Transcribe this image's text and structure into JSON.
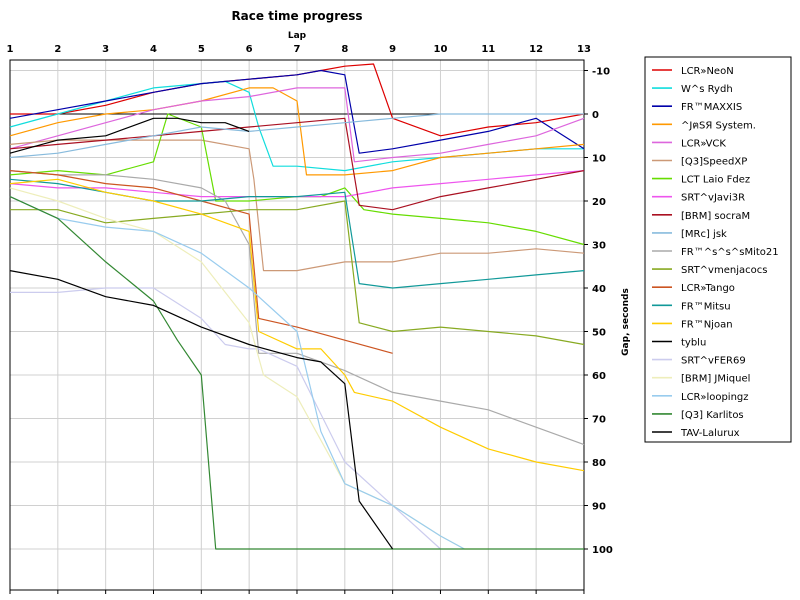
{
  "chart_data": {
    "type": "line",
    "title": "Race time progress",
    "xlabel": "Lap",
    "ylabel": "Gap, seconds",
    "xlim": [
      1,
      13
    ],
    "ylim": [
      -12,
      110
    ],
    "y_inverted": true,
    "grid": true,
    "legend_position": "right",
    "x_ticks": [
      "1",
      "2",
      "3",
      "4",
      "5",
      "6",
      "7",
      "8",
      "9",
      "10",
      "11",
      "12",
      "13"
    ],
    "y_ticks": [
      "-10",
      "0",
      "10",
      "20",
      "30",
      "40",
      "50",
      "60",
      "70",
      "80",
      "90",
      "100"
    ],
    "series": [
      {
        "name": "LCR»NeoN",
        "color": "#dd0000",
        "x": [
          1,
          2,
          3,
          4,
          5,
          6,
          7,
          7.5,
          8,
          8.6,
          9,
          10,
          11,
          12,
          13
        ],
        "y": [
          0,
          0,
          -2,
          -5,
          -7,
          -8,
          -9,
          -10,
          -11,
          -11.5,
          1,
          5,
          3,
          2,
          0
        ]
      },
      {
        "name": "W^s Rydh",
        "color": "#11dddd",
        "x": [
          1,
          2,
          3,
          4,
          5,
          5.5,
          6,
          6.2,
          6.5,
          7,
          8,
          9,
          10,
          11,
          12,
          13
        ],
        "y": [
          3,
          0,
          -3,
          -6,
          -7,
          -7.5,
          -5,
          3,
          12,
          12,
          13,
          11,
          10,
          9,
          8,
          8
        ]
      },
      {
        "name": "FR™MAXXIS",
        "color": "#0000aa",
        "x": [
          1,
          2,
          3,
          4,
          5,
          6,
          7,
          7.5,
          8,
          8.3,
          9,
          10,
          11,
          12,
          13
        ],
        "y": [
          1,
          -1,
          -3,
          -5,
          -7,
          -8,
          -9,
          -10,
          -9,
          9,
          8,
          6,
          4,
          1,
          8
        ]
      },
      {
        "name": "^JฅSЯ System.",
        "color": "#ff9900",
        "x": [
          1,
          2,
          3,
          4,
          5,
          6,
          6.5,
          7,
          7.2,
          8,
          9,
          10,
          11,
          12,
          13
        ],
        "y": [
          5,
          2,
          0,
          -1,
          -3,
          -6,
          -6,
          -3,
          14,
          14,
          13,
          10,
          9,
          8,
          7
        ]
      },
      {
        "name": "LCR»VCK",
        "color": "#dd66dd",
        "x": [
          1,
          2,
          3,
          4,
          5,
          6,
          7,
          8,
          8.2,
          9,
          10,
          11,
          12,
          13
        ],
        "y": [
          8,
          5,
          2,
          -1,
          -3,
          -4,
          -6,
          -6,
          11,
          10,
          9,
          7,
          5,
          1
        ]
      },
      {
        "name": "[Q3]SpeedXP",
        "color": "#cc9977",
        "x": [
          1,
          2,
          3,
          4,
          5,
          6,
          6.1,
          6.3,
          7,
          8,
          9,
          10,
          11,
          12,
          13
        ],
        "y": [
          7,
          6,
          6,
          6,
          6,
          8,
          15,
          36,
          36,
          34,
          34,
          32,
          32,
          31,
          32
        ]
      },
      {
        "name": "LCT Laio Fdez",
        "color": "#66dd00",
        "x": [
          1,
          2,
          3,
          4,
          4.3,
          5,
          5.3,
          6,
          7,
          7.5,
          8,
          8.4,
          9,
          10,
          11,
          12,
          13
        ],
        "y": [
          14,
          13,
          14,
          11,
          0,
          3,
          20,
          20,
          19,
          19,
          17,
          22,
          23,
          24,
          25,
          27,
          30
        ]
      },
      {
        "name": "SRT^vJavi3R",
        "color": "#ee55ee",
        "x": [
          1,
          2,
          3,
          4,
          5,
          6,
          7,
          8,
          9,
          10,
          11,
          12,
          13
        ],
        "y": [
          16,
          17,
          17,
          18,
          19,
          19,
          19,
          19,
          17,
          16,
          15,
          14,
          13
        ]
      },
      {
        "name": "[BRM] socraM",
        "color": "#aa1122",
        "x": [
          1,
          2,
          3,
          4,
          5,
          6,
          7,
          8,
          8.3,
          9,
          10,
          11,
          12,
          13
        ],
        "y": [
          8,
          7,
          6,
          5,
          4,
          3,
          2,
          1,
          21,
          22,
          19,
          17,
          15,
          13
        ]
      },
      {
        "name": "[MRc] jsk",
        "color": "#88bbdd",
        "x": [
          1,
          2,
          3,
          4,
          5,
          6,
          7,
          8,
          9,
          10,
          11,
          12,
          13
        ],
        "y": [
          10,
          9,
          7,
          5,
          3,
          4,
          3,
          2,
          1,
          0,
          0,
          0,
          0
        ]
      },
      {
        "name": "FR™^s^s^sMito21",
        "color": "#aaaaaa",
        "x": [
          1,
          2,
          3,
          4,
          5,
          5.5,
          6,
          6.2,
          7,
          7.5,
          8,
          9,
          10,
          11,
          12,
          13
        ],
        "y": [
          13,
          14,
          14,
          15,
          17,
          20,
          30,
          55,
          55,
          57,
          59,
          64,
          66,
          68,
          72,
          76
        ]
      },
      {
        "name": "SRT^vmenjacocs",
        "color": "#88aa22",
        "x": [
          1,
          2,
          3,
          4,
          5,
          6,
          7,
          8,
          8.3,
          9,
          10,
          11,
          12,
          13
        ],
        "y": [
          22,
          22,
          25,
          24,
          23,
          22,
          22,
          20,
          48,
          50,
          49,
          50,
          51,
          53
        ]
      },
      {
        "name": "LCR»Tango",
        "color": "#cc5522",
        "x": [
          1,
          2,
          3,
          4,
          5,
          6,
          6.2,
          7,
          8,
          9
        ],
        "y": [
          13,
          14,
          16,
          17,
          20,
          23,
          47,
          49,
          52,
          55
        ]
      },
      {
        "name": "FR™Mitsu",
        "color": "#119999",
        "x": [
          1,
          2,
          3,
          4,
          5,
          6,
          7,
          8,
          8.3,
          9,
          10,
          11,
          12,
          13
        ],
        "y": [
          15,
          16,
          18,
          20,
          20,
          19,
          19,
          18,
          39,
          40,
          39,
          38,
          37,
          36
        ]
      },
      {
        "name": "FR™Njoan",
        "color": "#ffcc00",
        "x": [
          1,
          2,
          3,
          4,
          5,
          6,
          6.2,
          7,
          7.5,
          8,
          8.2,
          9,
          10,
          11,
          12,
          13
        ],
        "y": [
          16,
          15,
          18,
          20,
          23,
          27,
          50,
          54,
          54,
          60,
          64,
          66,
          72,
          77,
          80,
          82
        ]
      },
      {
        "name": "tyblu",
        "color": "#000000",
        "x": [
          1,
          2,
          3,
          4,
          4.5,
          5,
          5.5,
          6
        ],
        "y": [
          9,
          6,
          5,
          1,
          1,
          2,
          2,
          4
        ]
      },
      {
        "name": "SRT^vFER69",
        "color": "#ccccee",
        "x": [
          1,
          2,
          3,
          4,
          5,
          5.5,
          6,
          6.2,
          7,
          8,
          9,
          10
        ],
        "y": [
          41,
          41,
          40,
          40,
          47,
          53,
          54,
          54,
          58,
          80,
          90,
          100
        ]
      },
      {
        "name": "[BRM] JMiquel",
        "color": "#eeeebb",
        "x": [
          1,
          2,
          3,
          4,
          5,
          6,
          6.3,
          7,
          8,
          9,
          10,
          10.5,
          11
        ],
        "y": [
          17,
          20,
          24,
          27,
          34,
          48,
          60,
          65,
          85,
          90,
          97,
          100,
          100
        ]
      },
      {
        "name": "LCR»loopingz",
        "color": "#99ccee",
        "x": [
          1,
          2,
          3,
          4,
          5,
          6,
          7,
          7.5,
          8,
          9,
          10,
          10.5
        ],
        "y": [
          19,
          24,
          26,
          27,
          32,
          40,
          50,
          73,
          85,
          90,
          97,
          100
        ]
      },
      {
        "name": "[Q3] Karlitos",
        "color": "#338833",
        "x": [
          1,
          2,
          3,
          4,
          4.5,
          5,
          5.3,
          6,
          7,
          8,
          9,
          10,
          11,
          12,
          13
        ],
        "y": [
          19,
          24,
          34,
          43,
          52,
          60,
          100,
          100,
          100,
          100,
          100,
          100,
          100,
          100,
          100
        ]
      },
      {
        "name": "TAV-Lalurux",
        "color": "#000000",
        "x": [
          1,
          2,
          3,
          4,
          5,
          6,
          7,
          7.5,
          8,
          8.3,
          9
        ],
        "y": [
          36,
          38,
          42,
          44,
          49,
          53,
          56,
          57,
          62,
          89,
          100
        ]
      }
    ]
  }
}
